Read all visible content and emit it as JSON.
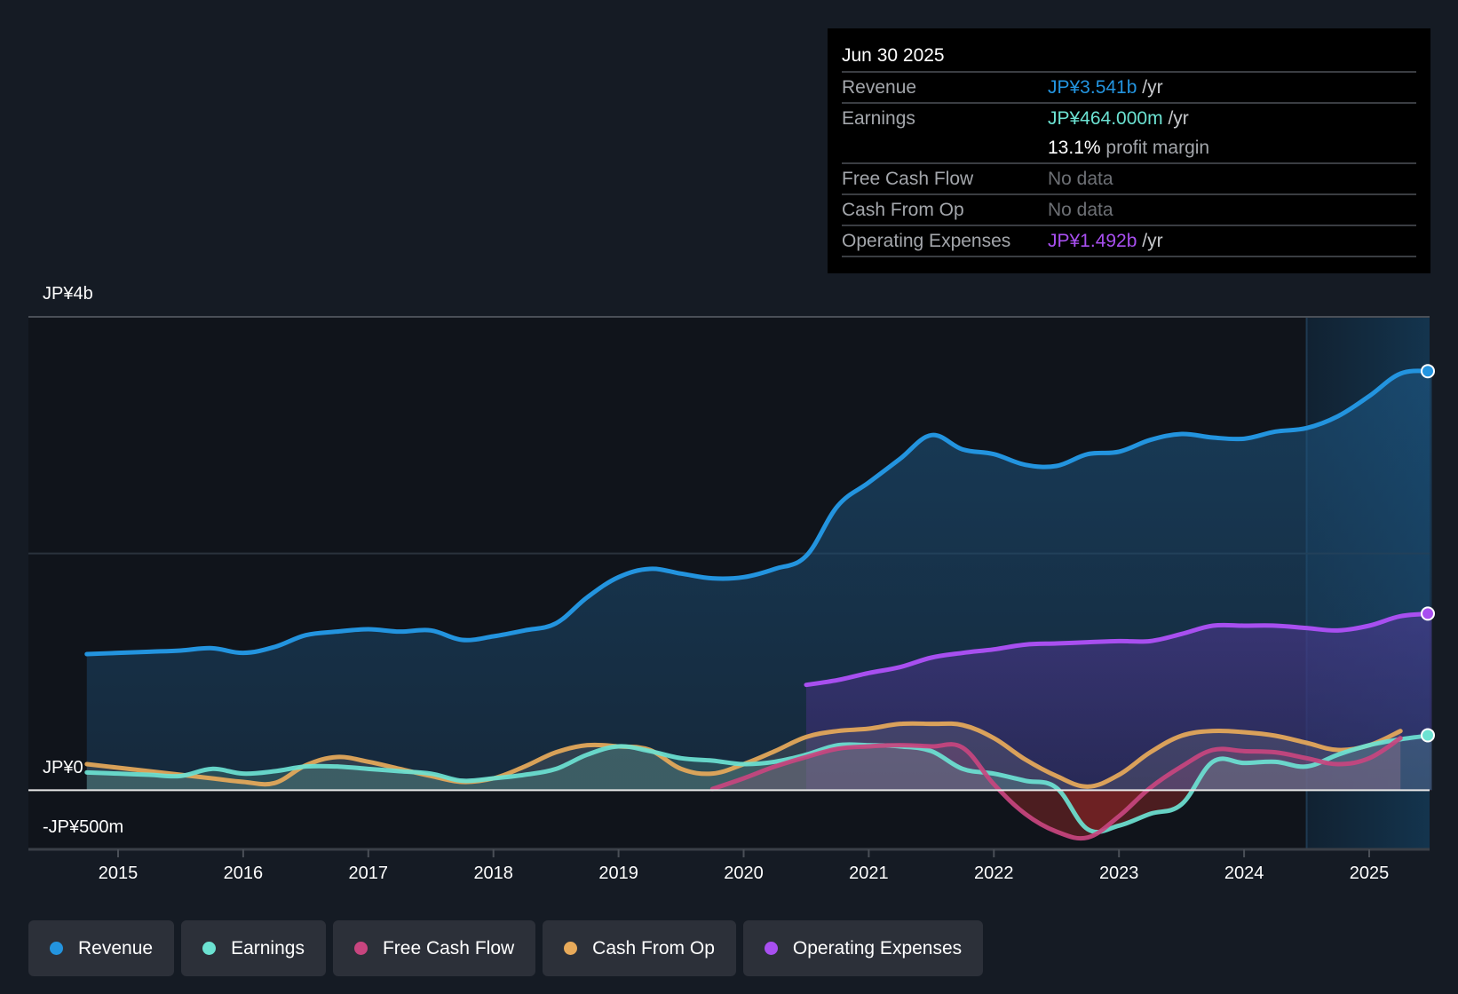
{
  "tooltip": {
    "date": "Jun 30 2025",
    "rows": [
      {
        "label": "Revenue",
        "value": "JP¥3.541b",
        "unit": "/yr",
        "color": "#2394df"
      },
      {
        "label": "Earnings",
        "value": "JP¥464.000m",
        "unit": "/yr",
        "color": "#6ce2d2"
      },
      {
        "label": "",
        "value": "13.1%",
        "unit": "profit margin",
        "color": "#ffffff"
      },
      {
        "label": "Free Cash Flow",
        "value": "No data",
        "unit": "",
        "color": "#6d7075"
      },
      {
        "label": "Cash From Op",
        "value": "No data",
        "unit": "",
        "color": "#6d7075"
      },
      {
        "label": "Operating Expenses",
        "value": "JP¥1.492b",
        "unit": "/yr",
        "color": "#a84ff0"
      }
    ]
  },
  "legend": [
    {
      "label": "Revenue",
      "color": "#2394df"
    },
    {
      "label": "Earnings",
      "color": "#6ce2d2"
    },
    {
      "label": "Free Cash Flow",
      "color": "#c8457f"
    },
    {
      "label": "Cash From Op",
      "color": "#e8aa5a"
    },
    {
      "label": "Operating Expenses",
      "color": "#a84ff0"
    }
  ],
  "chart_data": {
    "type": "area",
    "title": "",
    "xlabel": "",
    "ylabel": "",
    "currency": "JPY",
    "y_unit": "billions",
    "ylim": [
      -0.5,
      4.0
    ],
    "xlim": [
      2014.25,
      2025.58
    ],
    "y_ticks": [
      {
        "value": 4.0,
        "label": "JP¥4b"
      },
      {
        "value": 0.0,
        "label": "JP¥0"
      },
      {
        "value": -0.5,
        "label": "-JP¥500m"
      }
    ],
    "gridlines": [
      4.0,
      2.0,
      0.0
    ],
    "x_ticks": [
      2015,
      2016,
      2017,
      2018,
      2019,
      2020,
      2021,
      2022,
      2023,
      2024,
      2025
    ],
    "highlight_from": 2024.5,
    "legend_position": "bottom-left",
    "series": [
      {
        "name": "Revenue",
        "color": "#2394df",
        "x": [
          2014.75,
          2015.0,
          2015.25,
          2015.5,
          2015.75,
          2016.0,
          2016.25,
          2016.5,
          2016.75,
          2017.0,
          2017.25,
          2017.5,
          2017.75,
          2018.0,
          2018.25,
          2018.5,
          2018.75,
          2019.0,
          2019.25,
          2019.5,
          2019.75,
          2020.0,
          2020.25,
          2020.5,
          2020.75,
          2021.0,
          2021.25,
          2021.5,
          2021.75,
          2022.0,
          2022.25,
          2022.5,
          2022.75,
          2023.0,
          2023.25,
          2023.5,
          2023.75,
          2024.0,
          2024.25,
          2024.5,
          2024.75,
          2025.0,
          2025.25,
          2025.5
        ],
        "values": [
          1.15,
          1.16,
          1.17,
          1.18,
          1.2,
          1.16,
          1.21,
          1.31,
          1.34,
          1.36,
          1.34,
          1.35,
          1.27,
          1.3,
          1.35,
          1.41,
          1.63,
          1.8,
          1.87,
          1.83,
          1.79,
          1.8,
          1.87,
          1.98,
          2.4,
          2.6,
          2.8,
          3.0,
          2.88,
          2.84,
          2.75,
          2.74,
          2.84,
          2.86,
          2.96,
          3.01,
          2.98,
          2.97,
          3.03,
          3.06,
          3.16,
          3.33,
          3.52,
          3.541
        ]
      },
      {
        "name": "Earnings",
        "color": "#6ce2d2",
        "x": [
          2014.75,
          2015.0,
          2015.25,
          2015.5,
          2015.75,
          2016.0,
          2016.25,
          2016.5,
          2016.75,
          2017.0,
          2017.25,
          2017.5,
          2017.75,
          2018.0,
          2018.25,
          2018.5,
          2018.75,
          2019.0,
          2019.25,
          2019.5,
          2019.75,
          2020.0,
          2020.25,
          2020.5,
          2020.75,
          2021.0,
          2021.25,
          2021.5,
          2021.75,
          2022.0,
          2022.25,
          2022.5,
          2022.75,
          2023.0,
          2023.25,
          2023.5,
          2023.75,
          2024.0,
          2024.25,
          2024.5,
          2024.75,
          2025.0,
          2025.25,
          2025.5
        ],
        "values": [
          0.15,
          0.14,
          0.13,
          0.12,
          0.18,
          0.14,
          0.16,
          0.2,
          0.2,
          0.18,
          0.16,
          0.14,
          0.08,
          0.1,
          0.13,
          0.18,
          0.3,
          0.37,
          0.33,
          0.27,
          0.25,
          0.22,
          0.24,
          0.3,
          0.38,
          0.38,
          0.37,
          0.33,
          0.18,
          0.14,
          0.08,
          0.02,
          -0.33,
          -0.3,
          -0.2,
          -0.12,
          0.24,
          0.23,
          0.24,
          0.2,
          0.3,
          0.38,
          0.43,
          0.464
        ]
      },
      {
        "name": "Free Cash Flow",
        "color": "#c8457f",
        "x": [
          2019.75,
          2020.0,
          2020.25,
          2020.5,
          2020.75,
          2021.0,
          2021.25,
          2021.5,
          2021.75,
          2022.0,
          2022.25,
          2022.5,
          2022.75,
          2023.0,
          2023.25,
          2023.5,
          2023.75,
          2024.0,
          2024.25,
          2024.5,
          2024.75,
          2025.0,
          2025.25
        ],
        "values": [
          0.01,
          0.1,
          0.2,
          0.28,
          0.35,
          0.37,
          0.38,
          0.37,
          0.36,
          0.05,
          -0.2,
          -0.35,
          -0.4,
          -0.22,
          0.02,
          0.2,
          0.34,
          0.33,
          0.32,
          0.27,
          0.22,
          0.27,
          0.44
        ]
      },
      {
        "name": "Cash From Op",
        "color": "#e8aa5a",
        "x": [
          2014.75,
          2015.0,
          2015.25,
          2015.5,
          2015.75,
          2016.0,
          2016.25,
          2016.5,
          2016.75,
          2017.0,
          2017.25,
          2017.5,
          2017.75,
          2018.0,
          2018.25,
          2018.5,
          2018.75,
          2019.0,
          2019.25,
          2019.5,
          2019.75,
          2020.0,
          2020.25,
          2020.5,
          2020.75,
          2021.0,
          2021.25,
          2021.5,
          2021.75,
          2022.0,
          2022.25,
          2022.5,
          2022.75,
          2023.0,
          2023.25,
          2023.5,
          2023.75,
          2024.0,
          2024.25,
          2024.5,
          2024.75,
          2025.0,
          2025.25
        ],
        "values": [
          0.22,
          0.19,
          0.16,
          0.13,
          0.1,
          0.07,
          0.06,
          0.21,
          0.28,
          0.24,
          0.18,
          0.12,
          0.07,
          0.1,
          0.2,
          0.32,
          0.38,
          0.37,
          0.34,
          0.18,
          0.14,
          0.22,
          0.33,
          0.45,
          0.5,
          0.52,
          0.56,
          0.56,
          0.55,
          0.44,
          0.26,
          0.12,
          0.03,
          0.13,
          0.32,
          0.46,
          0.5,
          0.49,
          0.46,
          0.4,
          0.34,
          0.38,
          0.5
        ]
      },
      {
        "name": "Operating Expenses",
        "color": "#a84ff0",
        "x": [
          2020.5,
          2020.75,
          2021.0,
          2021.25,
          2021.5,
          2021.75,
          2022.0,
          2022.25,
          2022.5,
          2022.75,
          2023.0,
          2023.25,
          2023.5,
          2023.75,
          2024.0,
          2024.25,
          2024.5,
          2024.75,
          2025.0,
          2025.25,
          2025.5
        ],
        "values": [
          0.89,
          0.93,
          0.99,
          1.04,
          1.12,
          1.16,
          1.19,
          1.23,
          1.24,
          1.25,
          1.26,
          1.26,
          1.32,
          1.39,
          1.39,
          1.39,
          1.37,
          1.35,
          1.39,
          1.47,
          1.492
        ]
      }
    ]
  },
  "y_axis_labels": [
    "JP¥4b",
    "JP¥0",
    "-JP¥500m"
  ]
}
